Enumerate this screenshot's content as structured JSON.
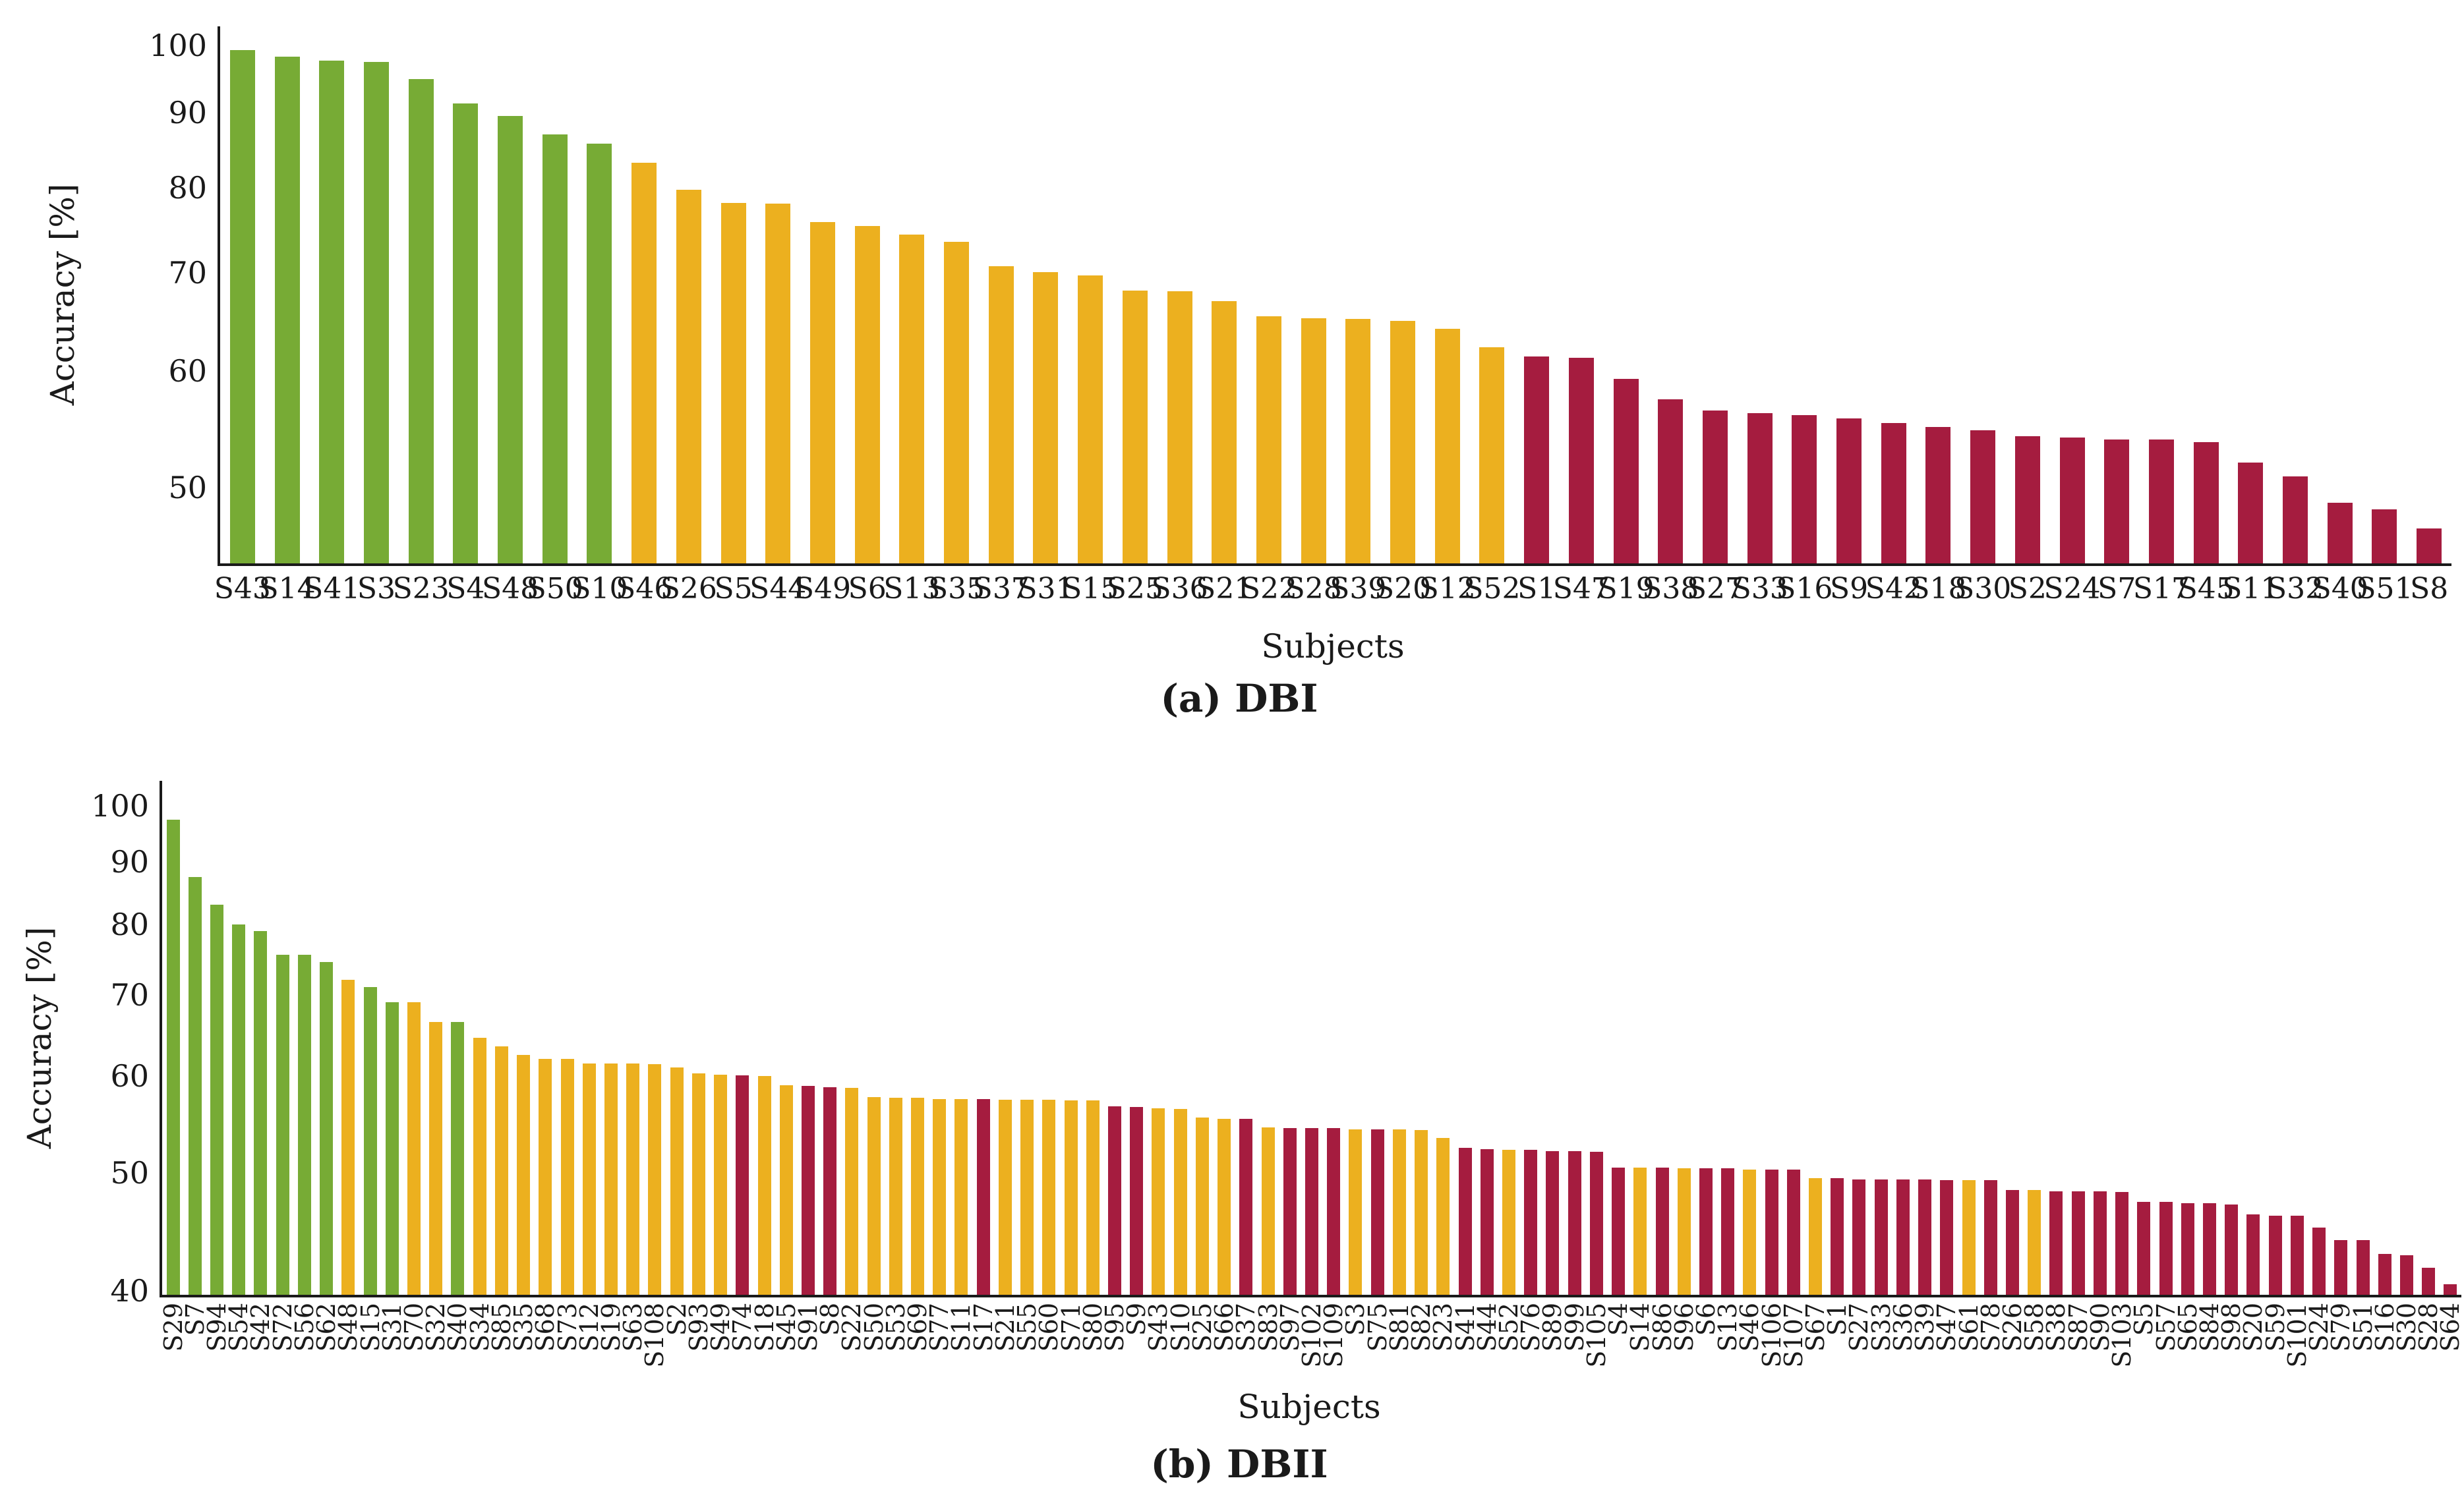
{
  "colors": {
    "g": "#77AB35",
    "y": "#ECB01F",
    "r": "#A51C3F",
    "axis": "#1a1a1a"
  },
  "captions": {
    "a": "(a) DBI",
    "b": "(b) DBII"
  },
  "chart_data": [
    {
      "type": "bar",
      "title": "(a) DBI",
      "xlabel": "Subjects",
      "ylabel": "Accuracy [%]",
      "yscale": "log",
      "grid": false,
      "legend": "none",
      "yticks": [
        50,
        60,
        70,
        80,
        90,
        100
      ],
      "ylim": [
        44.4,
        103.0
      ],
      "categories": [
        "S43",
        "S14",
        "S41",
        "S3",
        "S23",
        "S4",
        "S48",
        "S50",
        "S10",
        "S46",
        "S26",
        "S5",
        "S44",
        "S49",
        "S6",
        "S13",
        "S35",
        "S37",
        "S31",
        "S15",
        "S25",
        "S36",
        "S21",
        "S22",
        "S28",
        "S39",
        "S20",
        "S12",
        "S52",
        "S1",
        "S47",
        "S19",
        "S38",
        "S27",
        "S33",
        "S16",
        "S9",
        "S42",
        "S18",
        "S30",
        "S2",
        "S24",
        "S7",
        "S17",
        "S45",
        "S11",
        "S32",
        "S40",
        "S51",
        "S8"
      ],
      "values": [
        99.2,
        98.2,
        97.6,
        97.4,
        94.8,
        91.3,
        89.5,
        87.0,
        85.7,
        83.2,
        79.7,
        78.1,
        78.0,
        75.8,
        75.3,
        74.3,
        73.5,
        70.7,
        70.1,
        69.7,
        68.1,
        68.0,
        67.0,
        65.4,
        65.2,
        65.1,
        64.9,
        64.1,
        62.3,
        61.4,
        61.3,
        59.3,
        57.4,
        56.4,
        56.2,
        56.0,
        55.7,
        55.3,
        55.0,
        54.7,
        54.2,
        54.1,
        53.9,
        53.9,
        53.7,
        52.0,
        50.9,
        48.8,
        48.3,
        46.9
      ],
      "bar_colors": [
        "g",
        "g",
        "g",
        "g",
        "g",
        "g",
        "g",
        "g",
        "g",
        "y",
        "y",
        "y",
        "y",
        "y",
        "y",
        "y",
        "y",
        "y",
        "y",
        "y",
        "y",
        "y",
        "y",
        "y",
        "y",
        "y",
        "y",
        "y",
        "y",
        "r",
        "r",
        "r",
        "r",
        "r",
        "r",
        "r",
        "r",
        "r",
        "r",
        "r",
        "r",
        "r",
        "r",
        "r",
        "r",
        "r",
        "r",
        "r",
        "r",
        "r"
      ]
    },
    {
      "type": "bar",
      "title": "(b) DBII",
      "xlabel": "Subjects",
      "ylabel": "Accuracy [%]",
      "yscale": "log",
      "grid": false,
      "legend": "none",
      "yticks": [
        40,
        50,
        60,
        70,
        80,
        90,
        100
      ],
      "ylim": [
        39.7,
        104.9
      ],
      "categories": [
        "S29",
        "S7",
        "S94",
        "S54",
        "S42",
        "S72",
        "S56",
        "S62",
        "S48",
        "S15",
        "S31",
        "S70",
        "S32",
        "S40",
        "S34",
        "S85",
        "S35",
        "S68",
        "S73",
        "S12",
        "S19",
        "S63",
        "S108",
        "S2",
        "S93",
        "S49",
        "S74",
        "S18",
        "S45",
        "S91",
        "S8",
        "S22",
        "S50",
        "S53",
        "S69",
        "S77",
        "S11",
        "S17",
        "S21",
        "S55",
        "S60",
        "S71",
        "S80",
        "S95",
        "S9",
        "S43",
        "S10",
        "S25",
        "S66",
        "S37",
        "S83",
        "S97",
        "S102",
        "S109",
        "S3",
        "S75",
        "S81",
        "S82",
        "S23",
        "S41",
        "S44",
        "S52",
        "S76",
        "S89",
        "S99",
        "S105",
        "S4",
        "S14",
        "S86",
        "S96",
        "S6",
        "S13",
        "S46",
        "S106",
        "S107",
        "S67",
        "S1",
        "S27",
        "S33",
        "S36",
        "S39",
        "S47",
        "S61",
        "S78",
        "S26",
        "S58",
        "S38",
        "S87",
        "S90",
        "S103",
        "S5",
        "S57",
        "S65",
        "S84",
        "S98",
        "S20",
        "S59",
        "S101",
        "S24",
        "S79",
        "S51",
        "S16",
        "S30",
        "S28",
        "S64"
      ],
      "values": [
        97.5,
        87.5,
        83.0,
        80.0,
        79.0,
        75.5,
        75.5,
        74.5,
        72.0,
        71.0,
        69.0,
        69.0,
        66.5,
        66.5,
        64.5,
        63.5,
        62.5,
        62.0,
        62.0,
        61.5,
        61.5,
        61.5,
        61.4,
        61.0,
        60.3,
        60.2,
        60.1,
        60.0,
        59.0,
        58.9,
        58.8,
        58.7,
        57.7,
        57.6,
        57.6,
        57.5,
        57.5,
        57.5,
        57.4,
        57.4,
        57.4,
        57.3,
        57.3,
        56.7,
        56.6,
        56.5,
        56.4,
        55.5,
        55.4,
        55.4,
        54.5,
        54.4,
        54.4,
        54.4,
        54.3,
        54.3,
        54.3,
        54.2,
        53.4,
        52.4,
        52.3,
        52.2,
        52.2,
        52.1,
        52.1,
        52.0,
        50.5,
        50.5,
        50.5,
        50.4,
        50.4,
        50.4,
        50.3,
        50.3,
        50.3,
        49.5,
        49.5,
        49.4,
        49.4,
        49.4,
        49.4,
        49.3,
        49.3,
        49.3,
        48.4,
        48.4,
        48.3,
        48.3,
        48.3,
        48.2,
        47.3,
        47.3,
        47.2,
        47.2,
        47.1,
        46.2,
        46.1,
        46.1,
        45.1,
        44.0,
        44.0,
        42.9,
        42.8,
        41.8,
        40.5
      ],
      "bar_colors": [
        "g",
        "g",
        "g",
        "g",
        "g",
        "g",
        "g",
        "g",
        "y",
        "g",
        "g",
        "y",
        "y",
        "g",
        "y",
        "y",
        "y",
        "y",
        "y",
        "y",
        "y",
        "y",
        "y",
        "y",
        "y",
        "y",
        "r",
        "y",
        "y",
        "r",
        "r",
        "y",
        "y",
        "y",
        "y",
        "y",
        "y",
        "r",
        "y",
        "y",
        "y",
        "y",
        "y",
        "r",
        "r",
        "y",
        "y",
        "y",
        "y",
        "r",
        "y",
        "r",
        "r",
        "r",
        "y",
        "r",
        "y",
        "y",
        "y",
        "r",
        "r",
        "y",
        "r",
        "r",
        "r",
        "r",
        "r",
        "y",
        "r",
        "y",
        "r",
        "r",
        "y",
        "r",
        "r",
        "y",
        "r",
        "r",
        "r",
        "r",
        "r",
        "r",
        "y",
        "r",
        "r",
        "y",
        "r",
        "r",
        "r",
        "r",
        "r",
        "r",
        "r",
        "r",
        "r",
        "r",
        "r",
        "r",
        "r",
        "r",
        "r",
        "r",
        "r",
        "r",
        "r"
      ]
    }
  ]
}
